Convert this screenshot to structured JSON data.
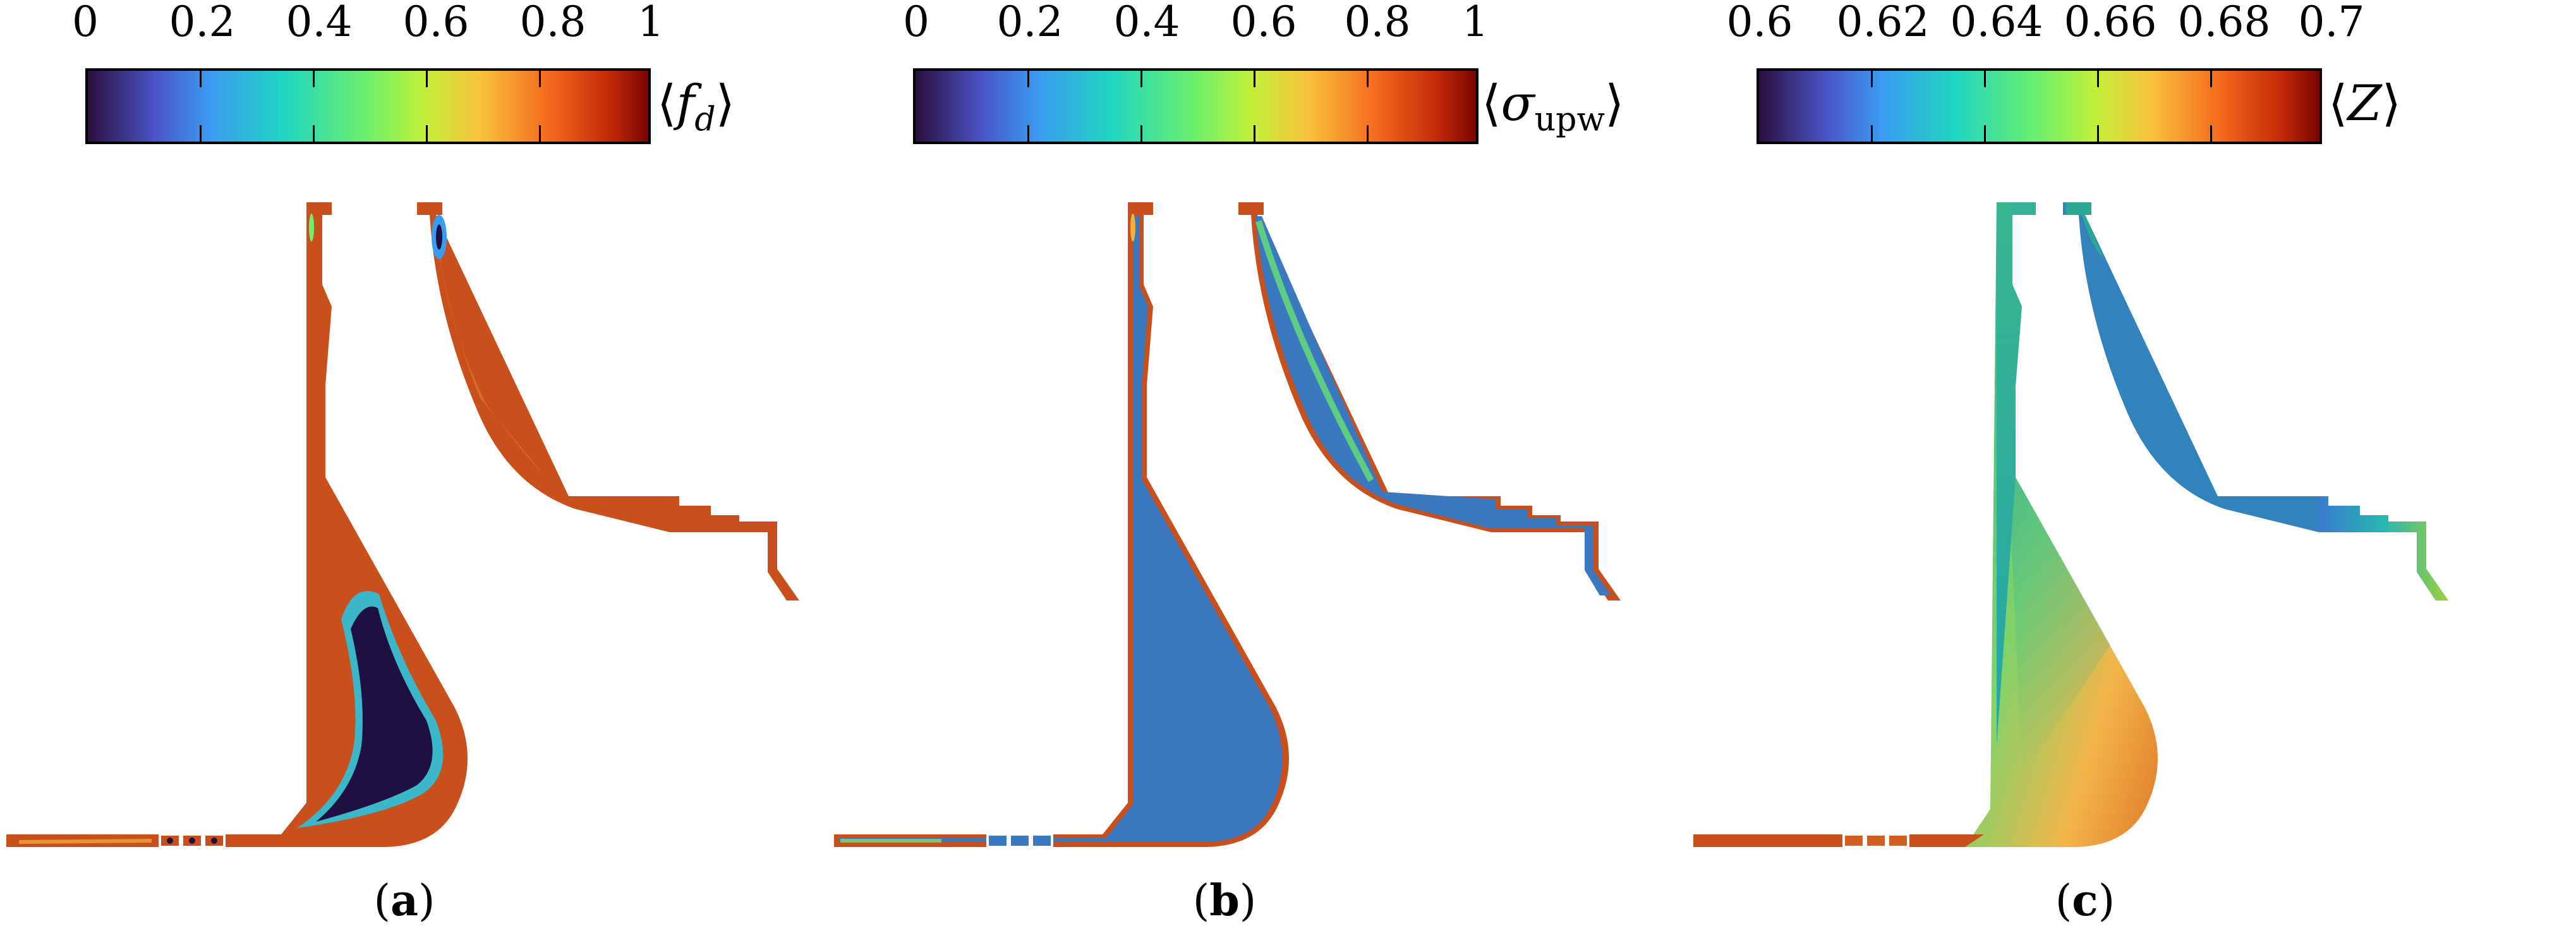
{
  "panels": [
    {
      "colorbar_ticks": [
        "0",
        "0.2",
        "0.4",
        "0.6",
        "0.8",
        "1"
      ],
      "quantity_symbol": "f",
      "quantity_sub": "d",
      "caption_letter": "a",
      "colormap": "turbo-style: dark navy → blue → cyan → green → yellow → orange → dark red",
      "dominant_color": "#c9501c",
      "core_color": "#1e1040"
    },
    {
      "colorbar_ticks": [
        "0",
        "0.2",
        "0.4",
        "0.6",
        "0.8",
        "1"
      ],
      "quantity_symbol": "σ",
      "quantity_sub": "upw",
      "caption_letter": "b",
      "colormap": "turbo-style: dark navy → blue → cyan → green → yellow → orange → dark red",
      "dominant_color": "#3a78bf",
      "edge_color": "#c9501c"
    },
    {
      "colorbar_ticks": [
        "0.6",
        "0.62",
        "0.64",
        "0.66",
        "0.68",
        "0.7"
      ],
      "quantity_symbol": "Z",
      "quantity_sub": "",
      "caption_letter": "c",
      "colormap": "turbo-style: dark navy → blue → cyan → green → yellow → orange → dark red",
      "inlet_color": "#c9501c",
      "throat_color": "#3a78bf",
      "outlet_color": "#9ccf3a"
    }
  ],
  "caption_open": "(",
  "caption_close": ")"
}
